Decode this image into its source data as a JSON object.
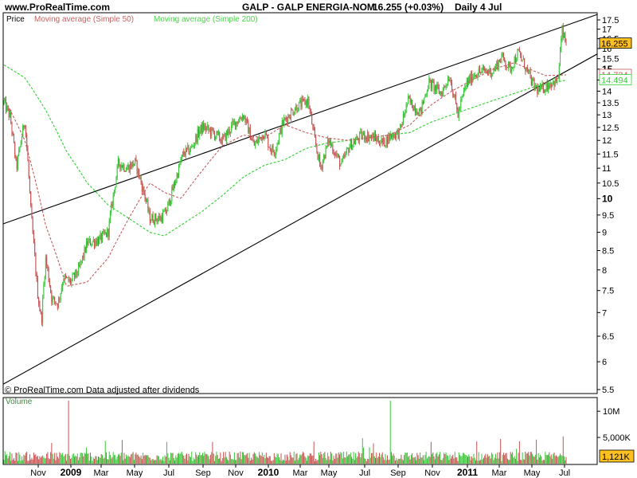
{
  "header": {
    "site": "www.ProRealTime.com",
    "title": "GALP - GALP ENERGIA-NOM",
    "quote": "16.255 (+0.03%)",
    "period": "Daily  4 Jul"
  },
  "legend": {
    "price": "Price",
    "ma50": "Moving average (Simple 50)",
    "ma200": "Moving average (Simple 200)"
  },
  "watermark": "© ProRealTime.com  Data adjusted after dividends",
  "colors": {
    "up_candle": "#37c837",
    "down_candle": "#c85050",
    "ma50": "#c85a5a",
    "ma200": "#3cd43c",
    "last_price_tag": "#ffc020"
  },
  "chart_data": [
    {
      "type": "line",
      "panel": "price",
      "ylabel": "Price",
      "y_scale": "log",
      "ylim": [
        5.5,
        17.5
      ],
      "y_ticks": [
        "17.5",
        "17",
        "16.5",
        "16",
        "15.5",
        "15",
        "14.5",
        "14",
        "13.5",
        "13",
        "12.5",
        "12",
        "11.5",
        "11",
        "10.5",
        "10",
        "9.5",
        "9",
        "8.5",
        "8",
        "7.5",
        "7",
        "6.5",
        "6",
        "5.5"
      ],
      "x_ticks": [
        "Nov",
        "2009",
        "Mar",
        "May",
        "Jul",
        "Sep",
        "Nov",
        "2010",
        "Mar",
        "May",
        "Jul",
        "Sep",
        "Nov",
        "2011",
        "Mar",
        "May",
        "Jul"
      ],
      "axis_tags": [
        {
          "text": "16.255",
          "series": "Price"
        },
        {
          "text": "14.734",
          "series": "Moving average (Simple 50)"
        },
        {
          "text": "14.494",
          "series": "Moving average (Simple 200)"
        }
      ],
      "price_path": {
        "months": [
          0.0,
          0.3,
          0.6,
          1.0,
          1.3,
          1.6,
          1.8,
          2.0,
          2.3,
          2.6,
          2.85,
          3.2,
          3.6,
          4.0,
          4.6,
          5.0,
          5.5,
          5.9,
          6.3,
          6.8,
          7.0,
          7.5,
          7.8,
          8.2,
          8.6,
          9.0,
          9.4,
          9.6,
          10.0,
          10.5,
          11.0,
          11.5,
          12.0,
          12.5,
          12.8,
          13.0,
          13.4,
          14.0,
          14.6,
          14.9,
          15.2,
          15.6,
          16.2,
          16.6,
          17.2,
          17.8,
          18.2,
          18.6,
          19.0,
          19.4,
          20.0,
          20.4,
          21.0,
          21.4,
          21.8,
          22.2,
          22.6,
          23.0,
          23.5,
          23.9,
          24.3,
          24.7,
          25.0,
          25.4,
          25.7,
          26.0,
          26.3,
          26.6,
          26.8,
          27.0
        ],
        "close": [
          13.5,
          12.9,
          11.0,
          12.8,
          9.5,
          7.5,
          6.8,
          8.3,
          7.3,
          7.2,
          7.8,
          7.7,
          8.0,
          8.7,
          8.8,
          9.0,
          11.2,
          11.0,
          11.2,
          10.0,
          9.4,
          9.4,
          9.6,
          10.5,
          11.5,
          11.7,
          12.4,
          12.5,
          12.3,
          12.0,
          12.6,
          13.0,
          11.8,
          12.3,
          11.7,
          11.6,
          12.7,
          13.3,
          13.6,
          12.1,
          11.0,
          12.0,
          11.1,
          11.8,
          12.2,
          12.1,
          11.9,
          12.2,
          12.3,
          13.6,
          13.1,
          14.4,
          13.9,
          14.7,
          13.0,
          14.3,
          14.8,
          14.9,
          14.9,
          15.6,
          15.0,
          15.8,
          15.2,
          14.3,
          14.0,
          14.2,
          14.4,
          14.4,
          16.9,
          16.2
        ],
        "note": "approximate daily path; candles are interpolated with small noise"
      },
      "ma50_path": {
        "months": [
          0.0,
          1.0,
          2.0,
          3.0,
          4.0,
          5.0,
          6.0,
          7.0,
          7.7,
          8.5,
          9.5,
          10.5,
          11.5,
          12.5,
          13.5,
          14.5,
          15.5,
          16.5,
          17.5,
          18.5,
          19.5,
          20.5,
          21.5,
          22.5,
          23.5,
          24.5,
          25.0,
          25.5,
          26.0,
          27.0
        ],
        "values": [
          13.7,
          12.0,
          9.2,
          7.6,
          7.7,
          8.3,
          9.4,
          10.5,
          10.2,
          10.0,
          10.9,
          11.8,
          12.2,
          12.1,
          12.6,
          12.3,
          12.1,
          12.0,
          12.1,
          12.2,
          12.6,
          13.4,
          14.0,
          14.5,
          15.0,
          15.3,
          15.1,
          14.9,
          14.7,
          14.734
        ]
      },
      "ma200_path": {
        "months": [
          0.0,
          1.0,
          2.0,
          3.0,
          4.0,
          5.0,
          6.0,
          7.0,
          7.7,
          8.5,
          9.5,
          10.5,
          11.5,
          12.5,
          13.5,
          14.5,
          15.5,
          16.5,
          17.5,
          18.5,
          19.5,
          20.5,
          21.5,
          22.5,
          23.5,
          24.5,
          25.5,
          26.0,
          26.5,
          27.0
        ],
        "values": [
          15.2,
          14.6,
          13.2,
          11.6,
          10.5,
          9.8,
          9.4,
          9.0,
          8.9,
          9.2,
          9.6,
          10.1,
          10.7,
          11.1,
          11.3,
          11.7,
          11.9,
          12.0,
          12.1,
          12.2,
          12.3,
          12.7,
          13.0,
          13.3,
          13.6,
          13.9,
          14.2,
          14.3,
          14.4,
          14.494
        ]
      },
      "channel_lines": [
        {
          "name": "upper",
          "points": [
            [
              0.0,
              9.25
            ],
            [
              27.0,
              17.2
            ]
          ]
        },
        {
          "name": "lower",
          "points": [
            [
              1.2,
              5.85
            ],
            [
              27.0,
              14.9
            ]
          ]
        }
      ]
    },
    {
      "type": "bar",
      "panel": "volume",
      "ylabel": "Volume",
      "y_ticks": [
        "10M",
        "5,000K"
      ],
      "ylim_units": [
        0,
        12000000
      ],
      "last_value_tag": "1,121K",
      "typical_volume": 1400000,
      "spikes": [
        {
          "month": 3.1,
          "value": 12500000
        },
        {
          "month": 18.55,
          "value": 12500000
        },
        {
          "month": 26.85,
          "value": 5200000
        }
      ],
      "x_ticks": [
        "Nov",
        "2009",
        "Mar",
        "May",
        "Jul",
        "Sep",
        "Nov",
        "2010",
        "Mar",
        "May",
        "Jul",
        "Sep",
        "Nov",
        "2011",
        "Mar",
        "May",
        "Jul"
      ]
    }
  ]
}
